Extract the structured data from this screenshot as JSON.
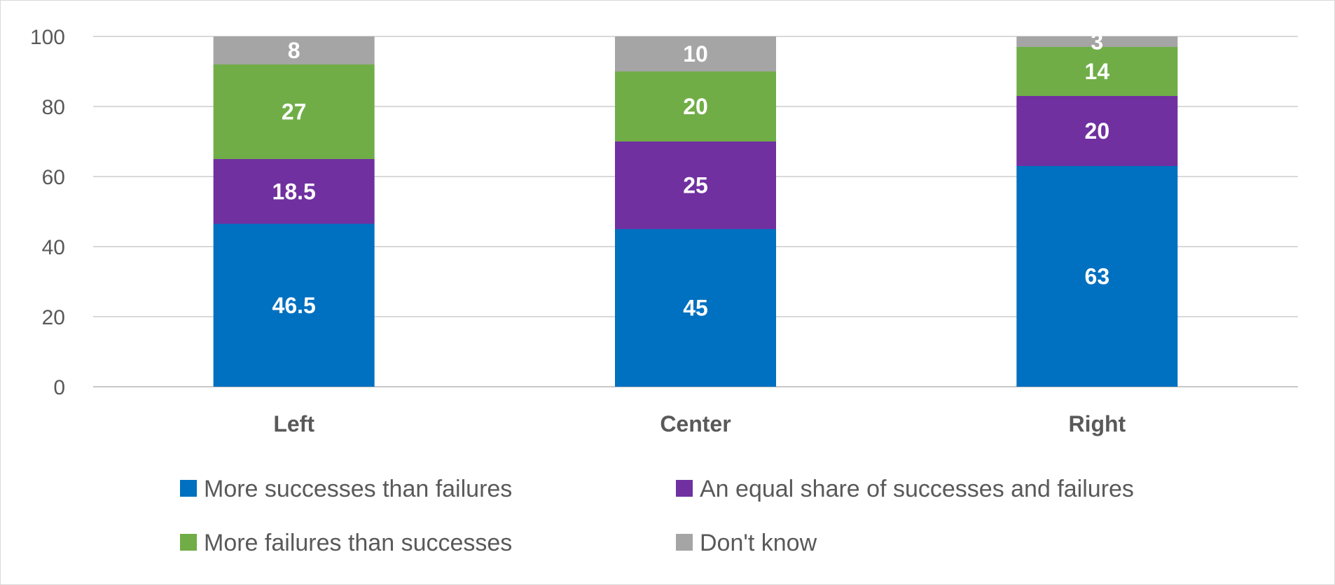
{
  "chart_data": {
    "type": "bar",
    "stacked": true,
    "categories": [
      "Left",
      "Center",
      "Right"
    ],
    "series": [
      {
        "name": "More successes than failures",
        "color": "#0070c0",
        "values": [
          46.5,
          45,
          63
        ]
      },
      {
        "name": "An equal share of successes and failures",
        "color": "#7030a0",
        "values": [
          18.5,
          25,
          20
        ]
      },
      {
        "name": "More failures than successes",
        "color": "#70ad47",
        "values": [
          27,
          20,
          14
        ]
      },
      {
        "name": "Don't know",
        "color": "#a5a5a5",
        "values": [
          8,
          10,
          3
        ]
      }
    ],
    "title": "",
    "xlabel": "",
    "ylabel": "",
    "ylim": [
      0,
      100
    ],
    "yticks": [
      0,
      20,
      40,
      60,
      80,
      100
    ],
    "grid": true,
    "legend_position": "bottom",
    "data_labels": true
  }
}
